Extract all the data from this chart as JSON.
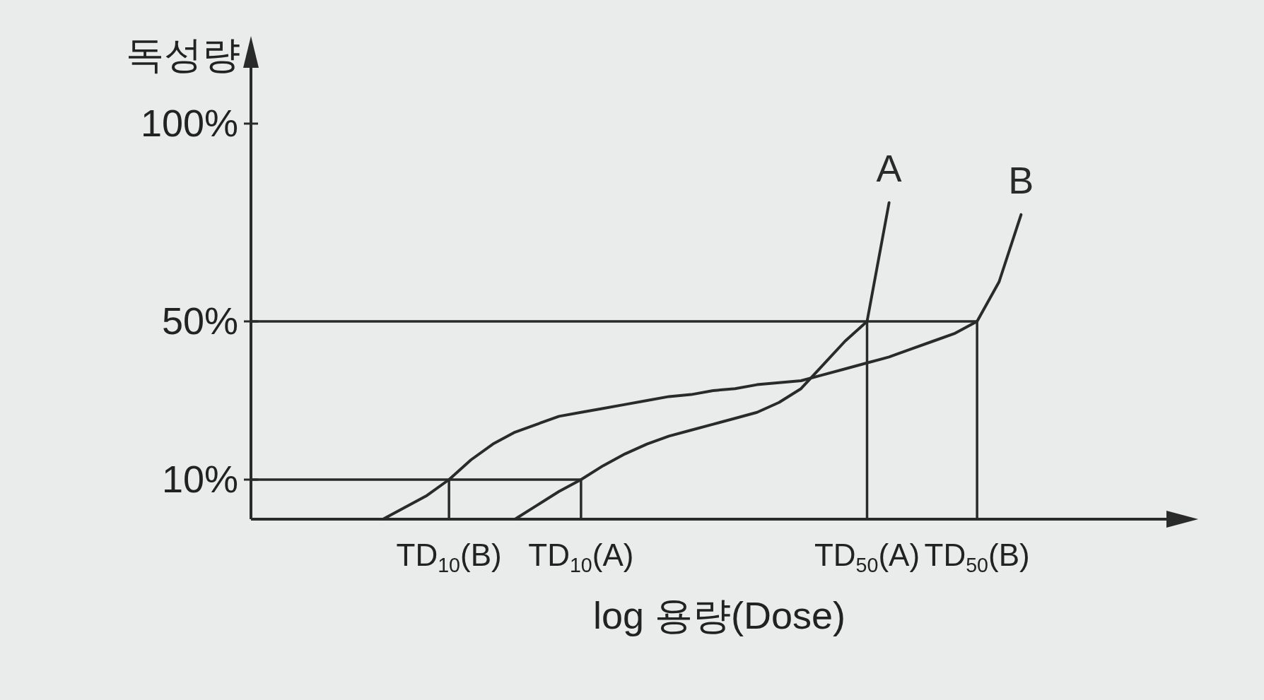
{
  "chart_data": {
    "type": "line",
    "ylabel": "독성량",
    "xlabel": "log 용량(Dose)",
    "ylim": [
      0,
      115
    ],
    "legend": false,
    "marker": "none",
    "categories": [
      null,
      null,
      null,
      null,
      null,
      null,
      null,
      null,
      null,
      "TD$_{10}$(B)",
      null,
      null,
      null,
      null,
      null,
      "TD$_{10}$(A)",
      null,
      null,
      null,
      null,
      null,
      null,
      null,
      null,
      null,
      null,
      null,
      null,
      "TD$_{50}$(A)",
      null,
      null,
      null,
      null,
      "TD$_{50}$(B)",
      null,
      null,
      null,
      null,
      null,
      null,
      null
    ],
    "yticks": [
      {
        "value": 10,
        "label": "10%"
      },
      {
        "value": 50,
        "label": "50%"
      },
      {
        "value": 100,
        "label": "100%"
      }
    ],
    "ref_lines": [
      {
        "axis": "y",
        "value": 10
      },
      {
        "axis": "y",
        "value": 50
      }
    ],
    "series": [
      {
        "name": "A",
        "color": "#2a2a2a",
        "values": [
          null,
          null,
          null,
          null,
          null,
          null,
          null,
          null,
          null,
          null,
          null,
          null,
          0,
          3.5,
          7,
          10,
          13.5,
          16.5,
          19,
          21,
          22.5,
          24,
          25.5,
          27,
          29.5,
          33,
          39,
          45,
          50,
          80,
          null,
          null,
          null,
          null,
          null,
          null,
          null,
          null,
          null,
          null,
          null
        ]
      },
      {
        "name": "B",
        "color": "#2a2a2a",
        "values": [
          null,
          null,
          null,
          null,
          null,
          null,
          0,
          3,
          6,
          10,
          15,
          19,
          22,
          24,
          26,
          27,
          28,
          29,
          30,
          31,
          31.5,
          32.5,
          33,
          34,
          34.5,
          35,
          36.5,
          38,
          39.5,
          41,
          43,
          45,
          47,
          50,
          60,
          77,
          null,
          null,
          null,
          null,
          null
        ]
      }
    ]
  }
}
